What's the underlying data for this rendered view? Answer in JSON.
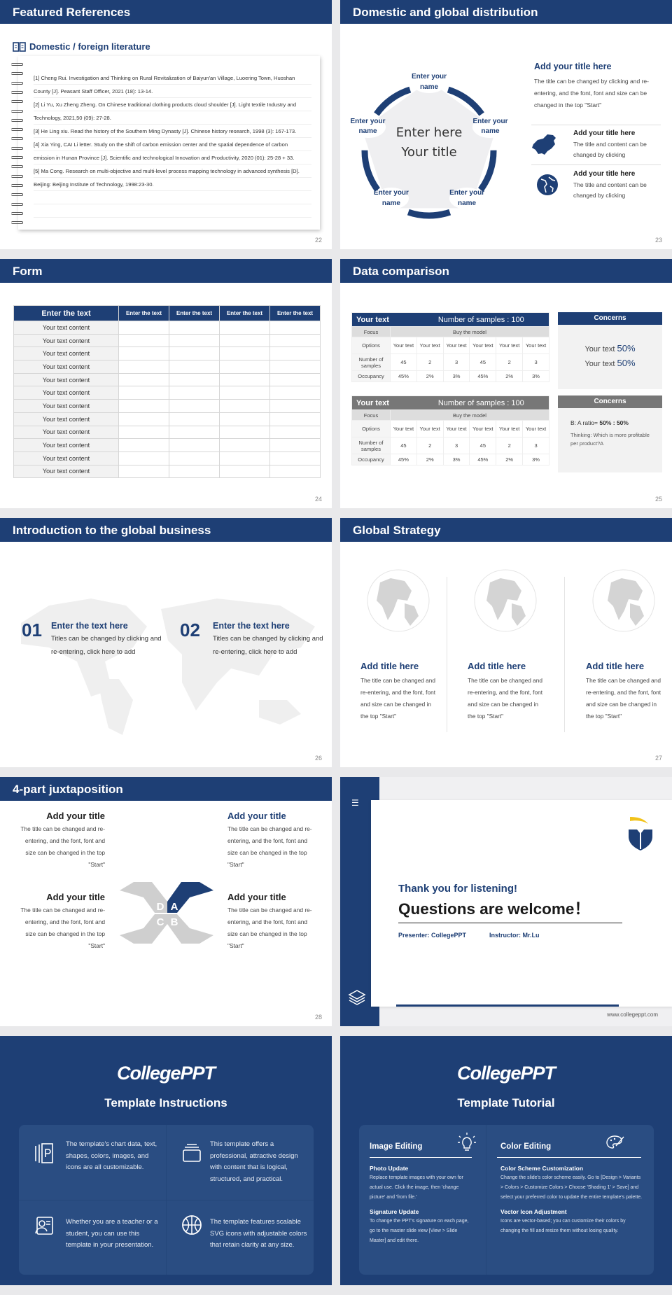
{
  "theme": {
    "primary": "#1e3f75",
    "gray_header": "#777777",
    "accent_yellow": "#f2c31b"
  },
  "s22": {
    "title": "Featured References",
    "heading": "Domestic / foreign literature",
    "icon": "book-icon",
    "page": "22",
    "lines": [
      "[1] Cheng Rui. Investigation and Thinking on Rural Revitalization of Baiyun'an Village, Luoering Town, Huoshan",
      "County [J]. Peasant Staff Officer, 2021 (18): 13-14.",
      "[2] Li Yu, Xu Zheng Zheng. On Chinese traditional clothing products cloud shoulder [J]. Light textile Industry and",
      "Technology, 2021,50 (09): 27-28.",
      "[3] He Ling xiu. Read the history of the Southern Ming Dynasty [J]. Chinese history research, 1998 (3): 167-173.",
      "[4] Xia Ying, CAI Li letter. Study on the shift of carbon emission center and the spatial dependence of carbon",
      "emission in Hunan Province [J]. Scientific and technological Innovation and Productivity, 2020 (01): 25-28 + 33.",
      "[5] Ma Cong. Research on multi-objective and multi-level process mapping technology in advanced synthesis [D].",
      "Beijing: Beijing Institute of Technology, 1998:23-30.",
      "",
      ""
    ]
  },
  "s23": {
    "title": "Domestic and global distribution",
    "page": "23",
    "center": [
      "Enter here",
      "Your title"
    ],
    "node": "Enter your name",
    "main_title": "Add your title here",
    "main_text": "The title can be changed by clicking and re-entering, and the font, font and size can be changed in the top \"Start\"",
    "items": [
      {
        "icon": "china-map-icon",
        "title": "Add your title here",
        "text": "The title and content can be changed by clicking"
      },
      {
        "icon": "globe-icon",
        "title": "Add your title here",
        "text": "The title and content can be changed by clicking"
      }
    ]
  },
  "s24": {
    "title": "Form",
    "page": "24",
    "headers": [
      "Enter the text",
      "Enter the text",
      "Enter the text",
      "Enter the text",
      "Enter the text"
    ],
    "row_label": "Your text content",
    "row_count": 12
  },
  "s25": {
    "title": "Data comparison",
    "page": "25",
    "tables": [
      {
        "label": "Your text",
        "samples": "Number of samples : 100",
        "focus": "Focus",
        "model": "Buy the model",
        "options": "Options",
        "opt_vals": [
          "Your text",
          "Your text",
          "Your text",
          "Your text",
          "Your text",
          "Your text"
        ],
        "num_label": "Number of samples",
        "nums": [
          "45",
          "2",
          "3",
          "45",
          "2",
          "3"
        ],
        "occ_label": "Occupancy",
        "occ": [
          "45%",
          "2%",
          "3%",
          "45%",
          "2%",
          "3%"
        ]
      },
      {
        "label": "Your text",
        "samples": "Number of samples : 100",
        "focus": "Focus",
        "model": "Buy the model",
        "options": "Options",
        "opt_vals": [
          "Your text",
          "Your text",
          "Your text",
          "Your text",
          "Your text",
          "Your text"
        ],
        "num_label": "Number of samples",
        "nums": [
          "45",
          "2",
          "3",
          "45",
          "2",
          "3"
        ],
        "occ_label": "Occupancy",
        "occ": [
          "45%",
          "2%",
          "3%",
          "45%",
          "2%",
          "3%"
        ]
      }
    ],
    "concern1": {
      "title": "Concerns",
      "l1": "Your text",
      "v1": "50%",
      "l2": "Your text",
      "v2": "50%"
    },
    "concern2": {
      "title": "Concerns",
      "ratio_label": "B: A ratio=",
      "ratio": "50% : 50%",
      "thinking": "Thinking: Which is more profitable per product?A"
    }
  },
  "s26": {
    "title": "Introduction to the global business",
    "page": "26",
    "items": [
      {
        "num": "01",
        "title": "Enter the text here",
        "text": "Titles can be changed by clicking and re-entering, click here to add"
      },
      {
        "num": "02",
        "title": "Enter the text here",
        "text": "Titles can be changed by clicking and re-entering, click here to add"
      }
    ]
  },
  "s27": {
    "title": "Global Strategy",
    "page": "27",
    "cols": [
      {
        "title": "Add title here",
        "text": "The title can be changed and re-entering, and the font, font and size can be changed in the top \"Start\""
      },
      {
        "title": "Add title here",
        "text": "The title can be changed and re-entering, and the font, font and size can be changed in the top \"Start\""
      },
      {
        "title": "Add title here",
        "text": "The title can be changed and re-entering, and the font, font and size can be changed in the top \"Start\""
      }
    ]
  },
  "s28": {
    "title": "4-part juxtaposition",
    "page": "28",
    "letters": [
      "A",
      "B",
      "C",
      "D"
    ],
    "items": [
      {
        "title": "Add your title",
        "text": "The title can be changed and re-entering, and the font, font and size can be changed in the top \"Start\""
      },
      {
        "title": "Add your title",
        "text": "The title can be changed and re-entering, and the font, font and size can be changed in the top \"Start\""
      },
      {
        "title": "Add your title",
        "text": "The title can be changed and re-entering, and the font, font and size can be changed in the top \"Start\""
      },
      {
        "title": "Add your title",
        "text": "The title can be changed and re-entering, and the font, font and size can be changed in the top \"Start\""
      }
    ]
  },
  "s29": {
    "thanks": "Thank you for listening!",
    "questions": "Questions are welcome！",
    "presenter": "Presenter: CollegePPT",
    "instructor": "Instructor: Mr.Lu",
    "url": "www.collegeppt.com"
  },
  "s30": {
    "logo": "CollegePPT",
    "title": "Template Instructions",
    "cells": [
      {
        "icon": "slides-icon",
        "text": "The template's chart data, text, shapes, colors, images, and icons are all customizable."
      },
      {
        "icon": "layers-box-icon",
        "text": "This template offers a professional, attractive design with content that is logical, structured, and practical."
      },
      {
        "icon": "presenter-icon",
        "text": "Whether you are a teacher or a student, you can use this template in your presentation."
      },
      {
        "icon": "basketball-icon",
        "text": "The template features scalable SVG icons with adjustable colors that retain clarity at any size."
      }
    ]
  },
  "s31": {
    "logo": "CollegePPT",
    "title": "Template Tutorial",
    "left": {
      "heading": "Image Editing",
      "icon": "lightbulb-icon",
      "items": [
        {
          "title": "Photo Update",
          "text": "Replace template images with your own for actual use. Click the image, then 'change picture' and 'from file.'"
        },
        {
          "title": "Signature Update",
          "text": "To change the PPT's signature on each page, go to the master slide view [View > Slide Master] and edit there."
        }
      ]
    },
    "right": {
      "heading": "Color Editing",
      "icon": "palette-icon",
      "items": [
        {
          "title": "Color Scheme Customization",
          "text": "Change the slide's color scheme easily. Go to [Design > Variants > Colors > Customize Colors > Choose 'Shading 1' > Save] and select your preferred color to update the entire template's palette."
        },
        {
          "title": "Vector Icon Adjustment",
          "text": "Icons are vector-based; you can customize their colors by changing the fill and resize them without losing quality."
        }
      ]
    }
  }
}
